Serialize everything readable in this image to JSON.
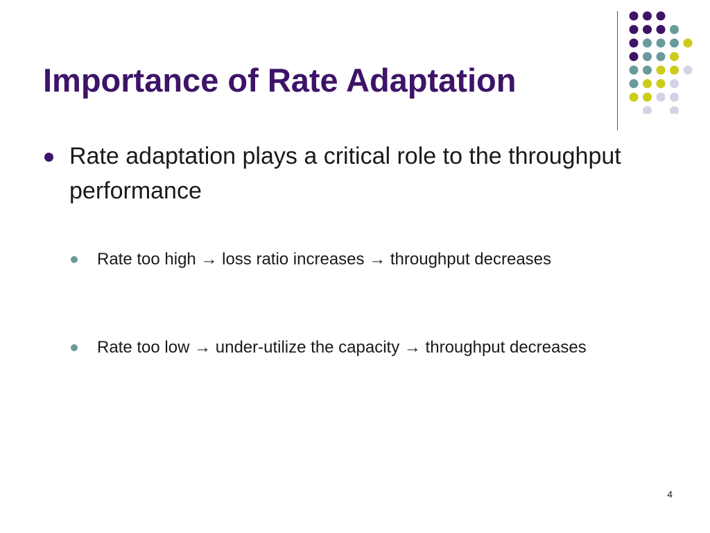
{
  "slide": {
    "title": "Importance of Rate Adaptation",
    "bullets": [
      {
        "text": "Rate adaptation plays a critical role to the throughput performance",
        "sub_bullets": [
          "Rate too high → loss ratio increases → throughput decreases",
          "Rate too low → under-utilize the capacity → throughput decreases"
        ]
      }
    ],
    "page_number": "4"
  },
  "theme": {
    "title_color": "#3d1468",
    "bullet_primary_color": "#3d1468",
    "bullet_secondary_color": "#6b9a9c",
    "dot_colors": {
      "purple": "#3d1468",
      "teal": "#6b9a9c",
      "yellow": "#cccc1a",
      "lavender": "#d3d3e6"
    }
  },
  "decoration": {
    "dot_grid": [
      [
        "purple",
        "purple",
        "purple",
        null,
        null
      ],
      [
        "purple",
        "purple",
        "purple",
        "teal",
        null
      ],
      [
        "purple",
        "teal",
        "teal",
        "teal",
        "yellow"
      ],
      [
        "purple",
        "teal",
        "teal",
        "yellow",
        null
      ],
      [
        "teal",
        "teal",
        "yellow",
        "yellow",
        "lavender"
      ],
      [
        "teal",
        "yellow",
        "yellow",
        "lavender",
        null
      ],
      [
        "yellow",
        "yellow",
        "lavender",
        "lavender",
        null
      ],
      [
        null,
        "lavender",
        null,
        "lavender",
        null
      ]
    ]
  }
}
